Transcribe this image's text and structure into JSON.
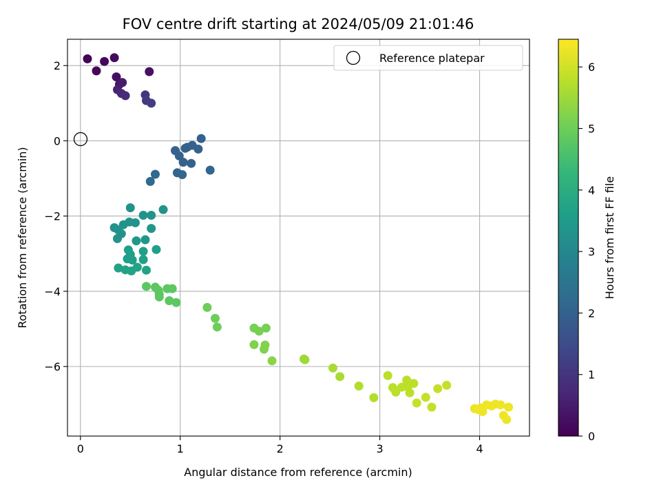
{
  "colors": {
    "viridis": [
      "#440154",
      "#482878",
      "#3e4989",
      "#31688e",
      "#26828e",
      "#1f9e89",
      "#35b779",
      "#6ece58",
      "#b5de2b",
      "#fde725"
    ],
    "grid": "#b0b0b0",
    "marker_edge": "#000000"
  },
  "chart_data": {
    "type": "scatter",
    "title": "FOV centre drift starting at 2024/05/09 21:01:46",
    "xlabel": "Angular distance from reference (arcmin)",
    "ylabel": "Rotation from reference (arcmin)",
    "colorbar_label": "Hours from first FF file",
    "xlim": [
      -0.13,
      4.5
    ],
    "ylim": [
      -7.85,
      2.7
    ],
    "x_ticks": [
      0,
      1,
      2,
      3,
      4
    ],
    "y_ticks": [
      2,
      0,
      -2,
      -4,
      -6
    ],
    "colorbar_range": [
      0,
      6.45
    ],
    "colorbar_ticks": [
      0,
      1,
      2,
      3,
      4,
      5,
      6
    ],
    "grid": true,
    "legend": {
      "position": "top-right",
      "entries": [
        "Reference platepar"
      ]
    },
    "reference_point": {
      "x": 0,
      "y": 0
    },
    "points": [
      {
        "x": 0.07,
        "y": 2.18,
        "c": 0.05
      },
      {
        "x": 0.16,
        "y": 1.86,
        "c": 0.1
      },
      {
        "x": 0.24,
        "y": 2.11,
        "c": 0.15
      },
      {
        "x": 0.34,
        "y": 2.21,
        "c": 0.2
      },
      {
        "x": 0.36,
        "y": 1.7,
        "c": 0.25
      },
      {
        "x": 0.69,
        "y": 1.84,
        "c": 0.3
      },
      {
        "x": 0.39,
        "y": 1.5,
        "c": 0.4
      },
      {
        "x": 0.42,
        "y": 1.55,
        "c": 0.5
      },
      {
        "x": 0.37,
        "y": 1.36,
        "c": 0.6
      },
      {
        "x": 0.41,
        "y": 1.26,
        "c": 0.7
      },
      {
        "x": 0.45,
        "y": 1.2,
        "c": 0.8
      },
      {
        "x": 0.65,
        "y": 1.22,
        "c": 1.0
      },
      {
        "x": 0.66,
        "y": 1.07,
        "c": 1.1
      },
      {
        "x": 0.71,
        "y": 1.0,
        "c": 1.15
      },
      {
        "x": 1.21,
        "y": 0.06,
        "c": 2.0
      },
      {
        "x": 0.95,
        "y": -0.26,
        "c": 2.0
      },
      {
        "x": 1.07,
        "y": -0.17,
        "c": 2.0
      },
      {
        "x": 1.05,
        "y": -0.2,
        "c": 2.0
      },
      {
        "x": 1.12,
        "y": -0.12,
        "c": 2.0
      },
      {
        "x": 1.18,
        "y": -0.22,
        "c": 2.0
      },
      {
        "x": 0.99,
        "y": -0.4,
        "c": 2.0
      },
      {
        "x": 1.03,
        "y": -0.57,
        "c": 2.0
      },
      {
        "x": 1.11,
        "y": -0.6,
        "c": 2.0
      },
      {
        "x": 0.97,
        "y": -0.85,
        "c": 2.1
      },
      {
        "x": 1.02,
        "y": -0.9,
        "c": 2.1
      },
      {
        "x": 1.3,
        "y": -0.78,
        "c": 2.1
      },
      {
        "x": 0.75,
        "y": -0.89,
        "c": 2.2
      },
      {
        "x": 0.7,
        "y": -1.08,
        "c": 2.2
      },
      {
        "x": 0.5,
        "y": -1.78,
        "c": 3.3
      },
      {
        "x": 0.83,
        "y": -1.83,
        "c": 3.3
      },
      {
        "x": 0.63,
        "y": -1.98,
        "c": 3.3
      },
      {
        "x": 0.71,
        "y": -1.98,
        "c": 3.3
      },
      {
        "x": 0.49,
        "y": -2.16,
        "c": 3.3
      },
      {
        "x": 0.43,
        "y": -2.23,
        "c": 3.3
      },
      {
        "x": 0.55,
        "y": -2.18,
        "c": 3.3
      },
      {
        "x": 0.34,
        "y": -2.31,
        "c": 3.3
      },
      {
        "x": 0.38,
        "y": -2.37,
        "c": 3.3
      },
      {
        "x": 0.41,
        "y": -2.47,
        "c": 3.3
      },
      {
        "x": 0.37,
        "y": -2.6,
        "c": 3.3
      },
      {
        "x": 0.71,
        "y": -2.33,
        "c": 3.4
      },
      {
        "x": 0.56,
        "y": -2.66,
        "c": 3.4
      },
      {
        "x": 0.65,
        "y": -2.63,
        "c": 3.4
      },
      {
        "x": 0.48,
        "y": -2.9,
        "c": 3.6
      },
      {
        "x": 0.63,
        "y": -2.94,
        "c": 3.6
      },
      {
        "x": 0.76,
        "y": -2.89,
        "c": 3.6
      },
      {
        "x": 0.5,
        "y": -3.02,
        "c": 3.6
      },
      {
        "x": 0.47,
        "y": -3.14,
        "c": 3.6
      },
      {
        "x": 0.52,
        "y": -3.17,
        "c": 3.6
      },
      {
        "x": 0.63,
        "y": -3.16,
        "c": 3.6
      },
      {
        "x": 0.38,
        "y": -3.38,
        "c": 3.7
      },
      {
        "x": 0.45,
        "y": -3.43,
        "c": 3.7
      },
      {
        "x": 0.57,
        "y": -3.36,
        "c": 3.7
      },
      {
        "x": 0.51,
        "y": -3.46,
        "c": 3.7
      },
      {
        "x": 0.66,
        "y": -3.44,
        "c": 3.7
      },
      {
        "x": 0.66,
        "y": -3.87,
        "c": 4.8
      },
      {
        "x": 0.75,
        "y": -3.89,
        "c": 4.8
      },
      {
        "x": 0.78,
        "y": -3.97,
        "c": 4.8
      },
      {
        "x": 0.87,
        "y": -3.93,
        "c": 4.8
      },
      {
        "x": 0.92,
        "y": -3.93,
        "c": 4.8
      },
      {
        "x": 0.79,
        "y": -4.08,
        "c": 4.8
      },
      {
        "x": 0.79,
        "y": -4.15,
        "c": 4.8
      },
      {
        "x": 0.89,
        "y": -4.25,
        "c": 4.8
      },
      {
        "x": 0.96,
        "y": -4.3,
        "c": 4.8
      },
      {
        "x": 1.27,
        "y": -4.43,
        "c": 5.0
      },
      {
        "x": 1.35,
        "y": -4.72,
        "c": 5.0
      },
      {
        "x": 1.37,
        "y": -4.95,
        "c": 5.0
      },
      {
        "x": 1.74,
        "y": -4.98,
        "c": 5.1
      },
      {
        "x": 1.79,
        "y": -5.06,
        "c": 5.1
      },
      {
        "x": 1.86,
        "y": -4.98,
        "c": 5.1
      },
      {
        "x": 1.74,
        "y": -5.42,
        "c": 5.2
      },
      {
        "x": 1.85,
        "y": -5.43,
        "c": 5.2
      },
      {
        "x": 1.84,
        "y": -5.54,
        "c": 5.2
      },
      {
        "x": 1.92,
        "y": -5.85,
        "c": 5.3
      },
      {
        "x": 2.24,
        "y": -5.8,
        "c": 5.5
      },
      {
        "x": 2.25,
        "y": -5.82,
        "c": 5.5
      },
      {
        "x": 2.53,
        "y": -6.04,
        "c": 5.6
      },
      {
        "x": 2.6,
        "y": -6.27,
        "c": 5.6
      },
      {
        "x": 2.79,
        "y": -6.52,
        "c": 5.7
      },
      {
        "x": 2.94,
        "y": -6.83,
        "c": 5.7
      },
      {
        "x": 3.08,
        "y": -6.24,
        "c": 5.8
      },
      {
        "x": 3.13,
        "y": -6.56,
        "c": 5.8
      },
      {
        "x": 3.16,
        "y": -6.68,
        "c": 5.8
      },
      {
        "x": 3.22,
        "y": -6.55,
        "c": 5.8
      },
      {
        "x": 3.27,
        "y": -6.36,
        "c": 5.8
      },
      {
        "x": 3.28,
        "y": -6.54,
        "c": 5.8
      },
      {
        "x": 3.3,
        "y": -6.7,
        "c": 5.8
      },
      {
        "x": 3.34,
        "y": -6.45,
        "c": 5.8
      },
      {
        "x": 3.37,
        "y": -6.97,
        "c": 5.9
      },
      {
        "x": 3.46,
        "y": -6.82,
        "c": 5.9
      },
      {
        "x": 3.52,
        "y": -7.08,
        "c": 5.9
      },
      {
        "x": 3.58,
        "y": -6.59,
        "c": 5.9
      },
      {
        "x": 3.67,
        "y": -6.5,
        "c": 5.9
      },
      {
        "x": 3.95,
        "y": -7.12,
        "c": 6.3
      },
      {
        "x": 3.99,
        "y": -7.15,
        "c": 6.3
      },
      {
        "x": 4.01,
        "y": -7.1,
        "c": 6.3
      },
      {
        "x": 4.03,
        "y": -7.2,
        "c": 6.3
      },
      {
        "x": 4.07,
        "y": -7.02,
        "c": 6.3
      },
      {
        "x": 4.12,
        "y": -7.05,
        "c": 6.3
      },
      {
        "x": 4.16,
        "y": -7.0,
        "c": 6.3
      },
      {
        "x": 4.21,
        "y": -7.02,
        "c": 6.3
      },
      {
        "x": 4.24,
        "y": -7.3,
        "c": 6.3
      },
      {
        "x": 4.27,
        "y": -7.41,
        "c": 6.3
      },
      {
        "x": 4.29,
        "y": -7.08,
        "c": 6.3
      }
    ]
  }
}
